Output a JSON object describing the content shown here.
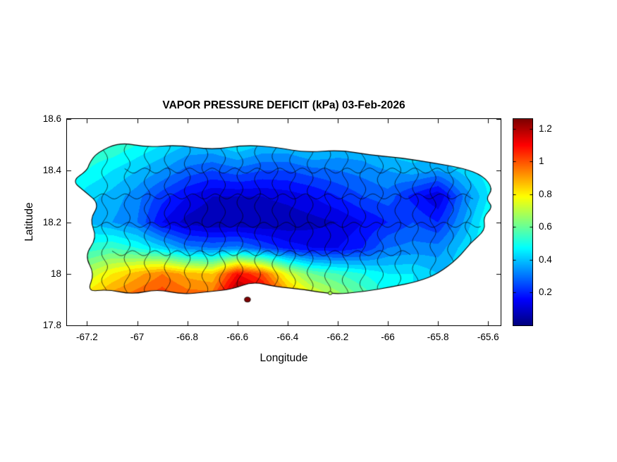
{
  "figure": {
    "title": "VAPOR PRESSURE DEFICIT (kPa) 03-Feb-2026",
    "xlabel": "Longitude",
    "ylabel": "Latitude",
    "background": "#ffffff",
    "text_color": "#000000"
  },
  "chart_data": {
    "type": "heatmap",
    "title": "VAPOR PRESSURE DEFICIT (kPa) 03-Feb-2026",
    "xlabel": "Longitude",
    "ylabel": "Latitude",
    "units": "kPa",
    "date": "03-Feb-2026",
    "region": "Puerto Rico",
    "xlim": [
      -67.28,
      -65.55
    ],
    "ylim": [
      17.8,
      18.6
    ],
    "xticks": [
      -67.2,
      -67,
      -66.8,
      -66.6,
      -66.4,
      -66.2,
      -66,
      -65.8,
      -65.6
    ],
    "xtick_labels": [
      "-67.2",
      "-67",
      "-66.8",
      "-66.6",
      "-66.4",
      "-66.2",
      "-66",
      "-65.8",
      "-65.6"
    ],
    "yticks": [
      17.8,
      18,
      18.2,
      18.4,
      18.6
    ],
    "ytick_labels": [
      "17.8",
      "18",
      "18.2",
      "18.4",
      "18.6"
    ],
    "colormap": "jet",
    "clim": [
      0,
      1.26
    ],
    "contour_step": 0.05,
    "colorbar_ticks": [
      0.2,
      0.4,
      0.6,
      0.8,
      1,
      1.2
    ],
    "colorbar_tick_labels": [
      "0.2",
      "0.4",
      "0.6",
      "0.8",
      "1",
      "1.2"
    ],
    "grid_lons": [
      -67.3,
      -67.2,
      -67.1,
      -67.0,
      -66.9,
      -66.8,
      -66.7,
      -66.6,
      -66.5,
      -66.4,
      -66.3,
      -66.2,
      -66.1,
      -66.0,
      -65.9,
      -65.8,
      -65.7,
      -65.6,
      -65.5
    ],
    "grid_lats": [
      18.6,
      18.5,
      18.4,
      18.3,
      18.2,
      18.1,
      18.0,
      17.9
    ],
    "vpd_values": [
      [
        0.55,
        0.55,
        0.55,
        0.5,
        0.5,
        0.45,
        0.45,
        0.5,
        0.45,
        0.45,
        0.5,
        0.45,
        0.45,
        0.45,
        0.45,
        0.45,
        0.5,
        0.5,
        0.5
      ],
      [
        0.6,
        0.55,
        0.55,
        0.5,
        0.45,
        0.4,
        0.4,
        0.45,
        0.4,
        0.4,
        0.45,
        0.4,
        0.4,
        0.45,
        0.45,
        0.45,
        0.5,
        0.5,
        0.5
      ],
      [
        0.55,
        0.5,
        0.45,
        0.4,
        0.35,
        0.28,
        0.25,
        0.28,
        0.25,
        0.25,
        0.28,
        0.3,
        0.32,
        0.35,
        0.38,
        0.35,
        0.42,
        0.48,
        0.5
      ],
      [
        0.5,
        0.42,
        0.38,
        0.32,
        0.22,
        0.15,
        0.1,
        0.1,
        0.1,
        0.12,
        0.15,
        0.2,
        0.25,
        0.28,
        0.18,
        0.1,
        0.3,
        0.45,
        0.48
      ],
      [
        0.45,
        0.4,
        0.35,
        0.3,
        0.15,
        0.08,
        0.05,
        0.05,
        0.05,
        0.06,
        0.08,
        0.1,
        0.15,
        0.2,
        0.25,
        0.2,
        0.35,
        0.5,
        0.5
      ],
      [
        0.5,
        0.52,
        0.55,
        0.5,
        0.42,
        0.32,
        0.3,
        0.32,
        0.25,
        0.18,
        0.15,
        0.15,
        0.2,
        0.3,
        0.32,
        0.32,
        0.42,
        0.5,
        0.5
      ],
      [
        0.6,
        0.7,
        0.8,
        0.88,
        0.95,
        0.88,
        0.85,
        1.1,
        1.0,
        0.75,
        0.6,
        0.55,
        0.5,
        0.45,
        0.45,
        0.4,
        0.45,
        0.48,
        0.48
      ],
      [
        0.7,
        0.85,
        0.95,
        1.0,
        1.05,
        1.0,
        1.0,
        1.3,
        1.2,
        0.95,
        0.8,
        0.7,
        0.6,
        0.5,
        0.45,
        0.42,
        0.42,
        0.45,
        0.45
      ]
    ],
    "island_outline": [
      [
        -67.19,
        18.43
      ],
      [
        -67.16,
        18.47
      ],
      [
        -67.07,
        18.51
      ],
      [
        -66.96,
        18.49
      ],
      [
        -66.84,
        18.5
      ],
      [
        -66.7,
        18.48
      ],
      [
        -66.57,
        18.5
      ],
      [
        -66.44,
        18.49
      ],
      [
        -66.33,
        18.47
      ],
      [
        -66.19,
        18.48
      ],
      [
        -66.07,
        18.46
      ],
      [
        -65.95,
        18.45
      ],
      [
        -65.82,
        18.43
      ],
      [
        -65.7,
        18.41
      ],
      [
        -65.62,
        18.38
      ],
      [
        -65.58,
        18.33
      ],
      [
        -65.61,
        18.29
      ],
      [
        -65.58,
        18.26
      ],
      [
        -65.62,
        18.22
      ],
      [
        -65.61,
        18.17
      ],
      [
        -65.67,
        18.12
      ],
      [
        -65.72,
        18.06
      ],
      [
        -65.8,
        18.0
      ],
      [
        -65.88,
        17.97
      ],
      [
        -65.98,
        17.95
      ],
      [
        -66.1,
        17.93
      ],
      [
        -66.22,
        17.92
      ],
      [
        -66.34,
        17.94
      ],
      [
        -66.45,
        17.95
      ],
      [
        -66.54,
        17.97
      ],
      [
        -66.62,
        17.94
      ],
      [
        -66.72,
        17.93
      ],
      [
        -66.82,
        17.92
      ],
      [
        -66.92,
        17.94
      ],
      [
        -67.02,
        17.92
      ],
      [
        -67.12,
        17.94
      ],
      [
        -67.2,
        17.93
      ],
      [
        -67.17,
        18.0
      ],
      [
        -67.21,
        18.07
      ],
      [
        -67.16,
        18.14
      ],
      [
        -67.19,
        18.21
      ],
      [
        -67.15,
        18.27
      ],
      [
        -67.21,
        18.32
      ],
      [
        -67.26,
        18.36
      ],
      [
        -67.2,
        18.4
      ]
    ],
    "islets": [
      {
        "lon": -66.56,
        "lat": 17.9,
        "r": 0.012
      },
      {
        "lon": -66.23,
        "lat": 17.925,
        "r": 0.008
      }
    ],
    "boundary_lons": [
      -67.13,
      -67.04,
      -66.96,
      -66.88,
      -66.8,
      -66.73,
      -66.66,
      -66.59,
      -66.52,
      -66.45,
      -66.38,
      -66.31,
      -66.24,
      -66.17,
      -66.1,
      -66.03,
      -65.96,
      -65.89,
      -65.82,
      -65.75,
      -65.68
    ],
    "boundary_lat_segments": [
      {
        "lat": 18.4,
        "lon0": -67.05,
        "lon1": -65.7
      },
      {
        "lat": 18.3,
        "lon0": -67.2,
        "lon1": -65.65
      },
      {
        "lat": 18.19,
        "lon0": -67.25,
        "lon1": -65.62
      },
      {
        "lat": 18.08,
        "lon0": -67.1,
        "lon1": -65.9
      }
    ]
  },
  "layout_colors": {
    "axis_color": "#000000",
    "boundary_line_color": "#000000"
  }
}
